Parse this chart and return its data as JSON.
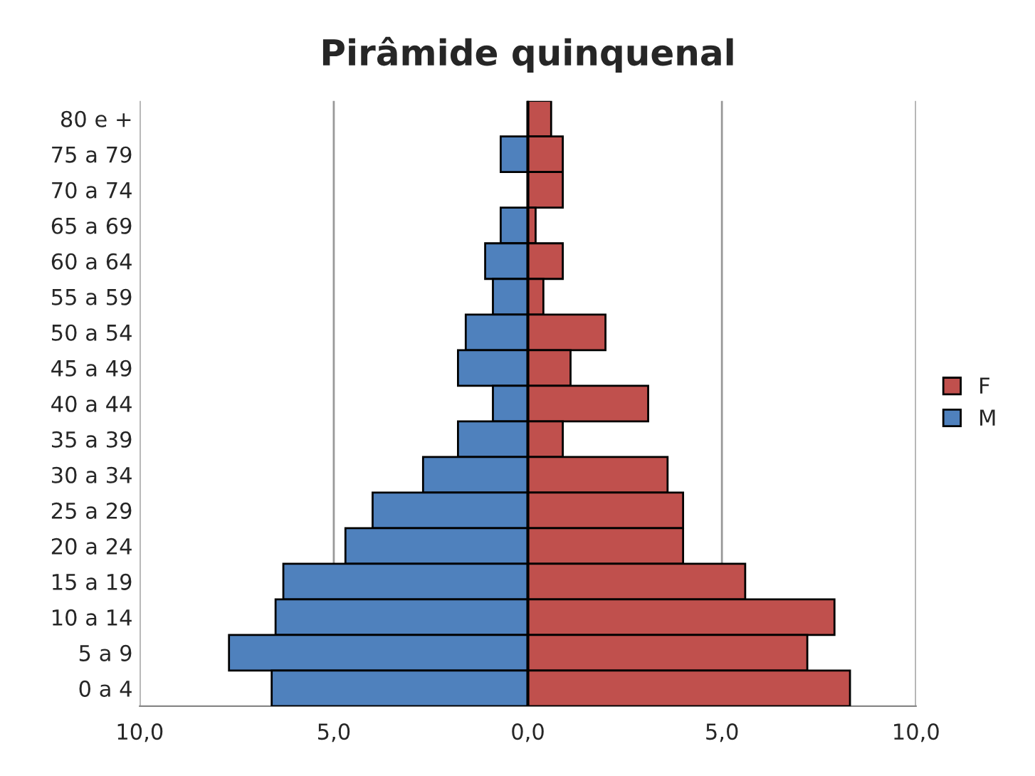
{
  "chart_data": {
    "type": "bar",
    "orientation": "horizontal",
    "title": "Pirâmide quinquenal",
    "categories": [
      "80 e +",
      "75 a 79",
      "70 a 74",
      "65 a 69",
      "60 a 64",
      "55 a 59",
      "50 a 54",
      "45 a 49",
      "40 a 44",
      "35 a 39",
      "30 a 34",
      "25 a 29",
      "20 a 24",
      "15 a 19",
      "10 a 14",
      "5 a 9",
      "0 a 4"
    ],
    "series": [
      {
        "name": "F",
        "color": "#c0504d",
        "values": [
          0.6,
          0.9,
          0.9,
          0.2,
          0.9,
          0.4,
          2.0,
          1.1,
          3.1,
          0.9,
          3.6,
          4.0,
          4.0,
          5.6,
          7.9,
          7.2,
          8.3
        ]
      },
      {
        "name": "M",
        "color": "#4f81bd",
        "values": [
          0,
          -0.7,
          0,
          -0.7,
          -1.1,
          -0.9,
          -1.6,
          -1.8,
          -0.9,
          -1.8,
          -2.7,
          -4.0,
          -4.7,
          -6.3,
          -6.5,
          -7.7,
          -6.6
        ]
      }
    ],
    "xlim": [
      -10,
      10
    ],
    "xticks": [
      {
        "value": -10,
        "label": "10,0"
      },
      {
        "value": -5,
        "label": "5,0"
      },
      {
        "value": 0,
        "label": "0,0"
      },
      {
        "value": 5,
        "label": "5,0"
      },
      {
        "value": 10,
        "label": "10,0"
      }
    ],
    "grid": "x",
    "legend": "right",
    "stacked": true
  }
}
